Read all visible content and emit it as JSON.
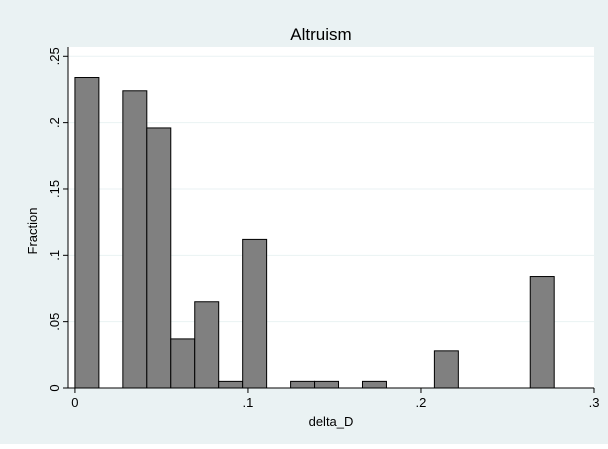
{
  "colors": {
    "outer_background": "#eaf2f3",
    "plot_background": "#ffffff",
    "bar_fill": "#808080",
    "bar_stroke": "#000000",
    "gridline": "#eaf2f3"
  },
  "chart_data": {
    "type": "bar",
    "title": "Altruism",
    "xlabel": "delta_D",
    "ylabel": "Fraction",
    "xlim": [
      -0.004,
      0.3
    ],
    "ylim": [
      0,
      0.257
    ],
    "grid": true,
    "x_ticks": [
      {
        "value": 0,
        "label": "0"
      },
      {
        "value": 0.1,
        "label": ".1"
      },
      {
        "value": 0.2,
        "label": ".2"
      },
      {
        "value": 0.3,
        "label": ".3"
      }
    ],
    "y_ticks": [
      {
        "value": 0,
        "label": "0"
      },
      {
        "value": 0.05,
        "label": ".05"
      },
      {
        "value": 0.1,
        "label": ".1"
      },
      {
        "value": 0.15,
        "label": ".15"
      },
      {
        "value": 0.2,
        "label": ".2"
      },
      {
        "value": 0.25,
        "label": ".25"
      }
    ],
    "bin_width": 0.01385,
    "bars": [
      {
        "x_start": 0.0,
        "value": 0.234
      },
      {
        "x_start": 0.0277,
        "value": 0.224
      },
      {
        "x_start": 0.04155,
        "value": 0.196
      },
      {
        "x_start": 0.0554,
        "value": 0.037
      },
      {
        "x_start": 0.06925,
        "value": 0.065
      },
      {
        "x_start": 0.0831,
        "value": 0.005
      },
      {
        "x_start": 0.09695,
        "value": 0.112
      },
      {
        "x_start": 0.12465,
        "value": 0.005
      },
      {
        "x_start": 0.1385,
        "value": 0.005
      },
      {
        "x_start": 0.1662,
        "value": 0.005
      },
      {
        "x_start": 0.20775,
        "value": 0.028
      },
      {
        "x_start": 0.26315,
        "value": 0.084
      }
    ]
  }
}
